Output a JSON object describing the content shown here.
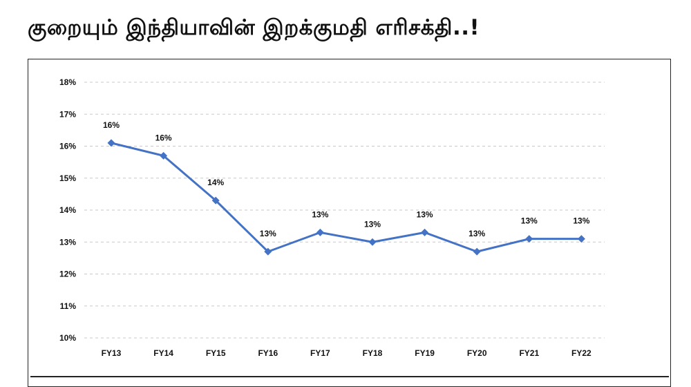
{
  "page": {
    "headline": "குறையும் இந்தியாவின் இறக்குமதி எரிசக்தி..!"
  },
  "colors": {
    "series": "#4472C4",
    "grid": "#c8c8c8",
    "frame": "#222222"
  },
  "chart_data": {
    "type": "line",
    "title": "",
    "xlabel": "",
    "ylabel": "",
    "ylim": [
      10,
      18
    ],
    "y_unit": "%",
    "yticks": [
      "10%",
      "11%",
      "12%",
      "13%",
      "14%",
      "15%",
      "16%",
      "17%",
      "18%"
    ],
    "categories": [
      "FY13",
      "FY14",
      "FY15",
      "FY16",
      "FY17",
      "FY18",
      "FY19",
      "FY20",
      "FY21",
      "FY22"
    ],
    "series": [
      {
        "values": [
          16.1,
          15.7,
          14.3,
          12.7,
          13.3,
          13.0,
          13.3,
          12.7,
          13.1,
          13.1
        ],
        "labels": [
          "16%",
          "16%",
          "14%",
          "13%",
          "13%",
          "13%",
          "13%",
          "13%",
          "13%",
          "13%"
        ]
      }
    ],
    "grid": true,
    "grid_style": "dashed horizontal",
    "marker": "diamond",
    "legend": "none"
  }
}
